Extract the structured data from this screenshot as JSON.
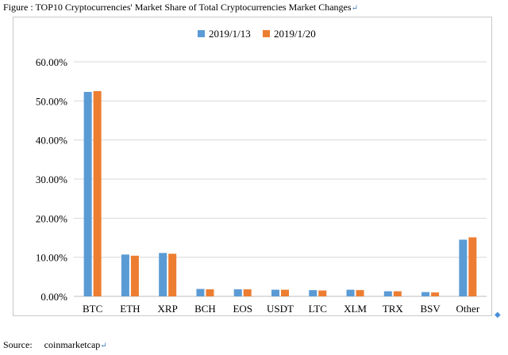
{
  "caption": {
    "text": "Figure : TOP10 Cryptocurrencies' Market Share of Total Cryptocurrencies Market Changes",
    "return_mark": "↵"
  },
  "source": {
    "label": "Source:",
    "value": "coinmarketcap",
    "return_mark": "↵"
  },
  "colors": {
    "series_1": "#5b9bd5",
    "series_2": "#ed7d31",
    "gridline": "#d9d9d9",
    "axis": "#bfbfbf"
  },
  "chart_data": {
    "type": "bar",
    "categories": [
      "BTC",
      "ETH",
      "XRP",
      "BCH",
      "EOS",
      "USDT",
      "LTC",
      "XLM",
      "TRX",
      "BSV",
      "Other"
    ],
    "series": [
      {
        "name": "2019/1/13",
        "values": [
          52.3,
          10.7,
          11.1,
          1.9,
          1.8,
          1.7,
          1.6,
          1.7,
          1.3,
          1.1,
          14.5
        ]
      },
      {
        "name": "2019/1/20",
        "values": [
          52.5,
          10.4,
          10.9,
          1.8,
          1.8,
          1.7,
          1.5,
          1.6,
          1.3,
          1.0,
          15.1
        ]
      }
    ],
    "ylim": [
      0,
      60
    ],
    "yticks": [
      "0.00%",
      "10.00%",
      "20.00%",
      "30.00%",
      "40.00%",
      "50.00%",
      "60.00%"
    ],
    "grid": true,
    "legend_position": "top"
  }
}
